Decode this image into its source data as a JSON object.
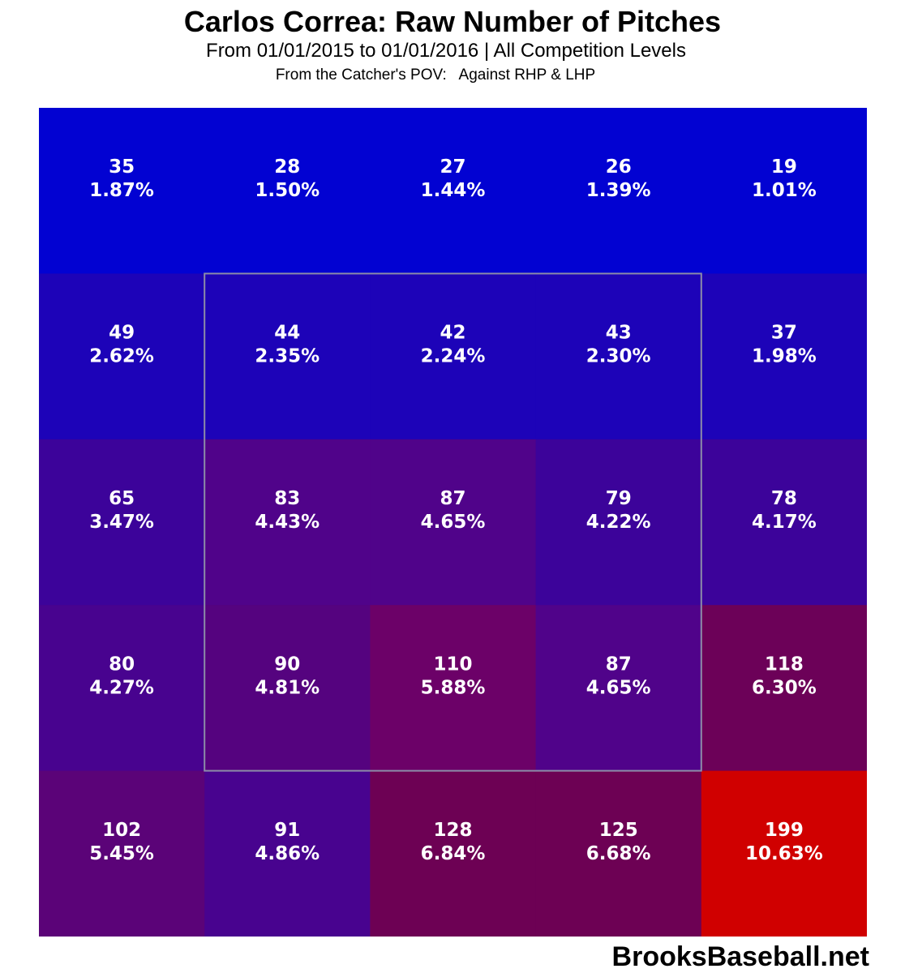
{
  "header": {
    "title": "Carlos Correa: Raw Number of Pitches",
    "subtitle": "From 01/01/2015 to 01/01/2016 | All Competition Levels",
    "note": "From the Catcher's POV:   Against RHP & LHP"
  },
  "watermark": "BrooksBaseball.net",
  "chart_data": {
    "type": "heatmap",
    "title": "Carlos Correa: Raw Number of Pitches",
    "subtitle": "From 01/01/2015 to 01/01/2016 | All Competition Levels",
    "rows": 5,
    "cols": 5,
    "counts": [
      [
        35,
        28,
        27,
        26,
        19
      ],
      [
        49,
        44,
        42,
        43,
        37
      ],
      [
        65,
        83,
        87,
        79,
        78
      ],
      [
        80,
        90,
        110,
        87,
        118
      ],
      [
        102,
        91,
        128,
        125,
        199
      ]
    ],
    "percents": [
      [
        "1.87%",
        "1.50%",
        "1.44%",
        "1.39%",
        "1.01%"
      ],
      [
        "2.62%",
        "2.35%",
        "2.24%",
        "2.30%",
        "1.98%"
      ],
      [
        "3.47%",
        "4.43%",
        "4.65%",
        "4.22%",
        "4.17%"
      ],
      [
        "4.27%",
        "4.81%",
        "5.88%",
        "4.65%",
        "6.30%"
      ],
      [
        "5.45%",
        "4.86%",
        "6.84%",
        "6.68%",
        "10.63%"
      ]
    ],
    "colors": [
      [
        "#0202d2",
        "#0202d2",
        "#0202d2",
        "#0202d2",
        "#0202d2"
      ],
      [
        "#1d03b8",
        "#1d03b8",
        "#1d03b8",
        "#1d03b8",
        "#1d03b8"
      ],
      [
        "#3c039a",
        "#50038a",
        "#50038a",
        "#3c039a",
        "#3c039a"
      ],
      [
        "#48038f",
        "#55037f",
        "#6c0168",
        "#50038a",
        "#6c0158"
      ],
      [
        "#5b0378",
        "#48038f",
        "#6d0154",
        "#6d0154",
        "#d00000"
      ]
    ],
    "strike_zone": {
      "rows": [
        1,
        3
      ],
      "cols": [
        1,
        3
      ],
      "color": "#8c8ca8"
    }
  }
}
